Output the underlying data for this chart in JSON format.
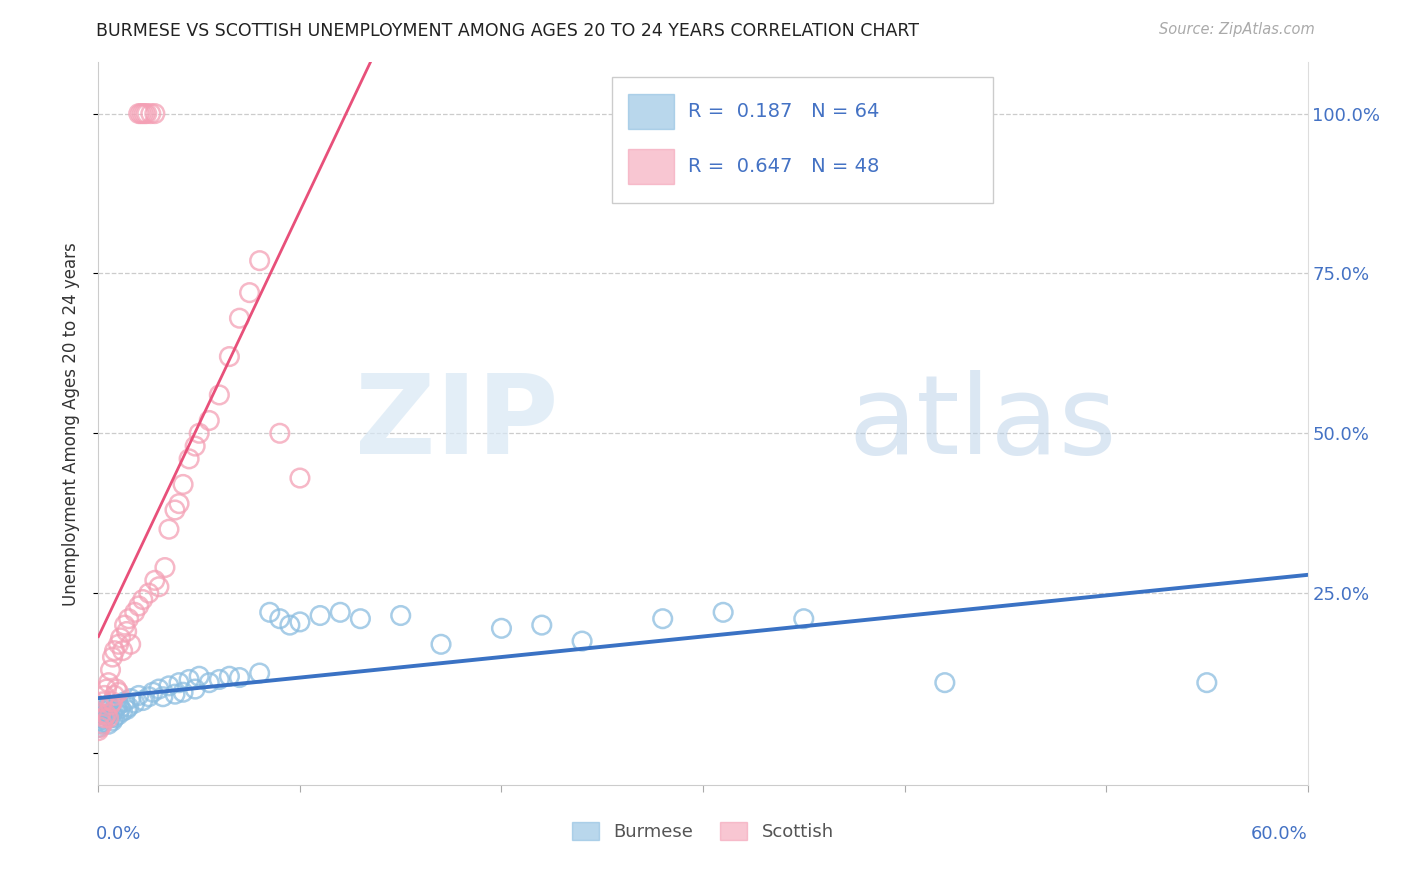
{
  "title": "BURMESE VS SCOTTISH UNEMPLOYMENT AMONG AGES 20 TO 24 YEARS CORRELATION CHART",
  "source": "Source: ZipAtlas.com",
  "ylabel": "Unemployment Among Ages 20 to 24 years",
  "xlim": [
    0.0,
    0.6
  ],
  "ylim": [
    -0.05,
    1.08
  ],
  "burmese_R": 0.187,
  "burmese_N": 64,
  "scottish_R": 0.647,
  "scottish_N": 48,
  "burmese_color": "#8bbde0",
  "scottish_color": "#f4a0b5",
  "burmese_line_color": "#3a72c4",
  "scottish_line_color": "#e8507a",
  "legend_burmese": "Burmese",
  "legend_scottish": "Scottish",
  "burmese_x": [
    0.0,
    0.0,
    0.001,
    0.001,
    0.002,
    0.002,
    0.003,
    0.003,
    0.004,
    0.004,
    0.005,
    0.005,
    0.005,
    0.006,
    0.006,
    0.007,
    0.007,
    0.008,
    0.008,
    0.009,
    0.01,
    0.01,
    0.011,
    0.012,
    0.013,
    0.014,
    0.015,
    0.016,
    0.018,
    0.02,
    0.022,
    0.025,
    0.027,
    0.03,
    0.032,
    0.035,
    0.038,
    0.04,
    0.042,
    0.045,
    0.048,
    0.05,
    0.055,
    0.06,
    0.065,
    0.07,
    0.08,
    0.085,
    0.09,
    0.095,
    0.1,
    0.11,
    0.12,
    0.13,
    0.15,
    0.17,
    0.2,
    0.22,
    0.24,
    0.28,
    0.31,
    0.35,
    0.42,
    0.55
  ],
  "burmese_y": [
    0.05,
    0.04,
    0.045,
    0.055,
    0.048,
    0.06,
    0.052,
    0.065,
    0.058,
    0.07,
    0.045,
    0.06,
    0.075,
    0.055,
    0.07,
    0.05,
    0.065,
    0.055,
    0.068,
    0.072,
    0.06,
    0.075,
    0.07,
    0.065,
    0.08,
    0.068,
    0.072,
    0.085,
    0.078,
    0.09,
    0.082,
    0.088,
    0.095,
    0.1,
    0.088,
    0.105,
    0.092,
    0.11,
    0.095,
    0.115,
    0.1,
    0.12,
    0.11,
    0.115,
    0.12,
    0.118,
    0.125,
    0.22,
    0.21,
    0.2,
    0.205,
    0.215,
    0.22,
    0.21,
    0.215,
    0.17,
    0.195,
    0.2,
    0.175,
    0.21,
    0.22,
    0.21,
    0.11,
    0.11
  ],
  "scottish_x": [
    0.0,
    0.001,
    0.001,
    0.002,
    0.002,
    0.003,
    0.003,
    0.004,
    0.004,
    0.005,
    0.005,
    0.006,
    0.006,
    0.007,
    0.007,
    0.008,
    0.008,
    0.009,
    0.01,
    0.01,
    0.011,
    0.012,
    0.013,
    0.014,
    0.015,
    0.016,
    0.018,
    0.02,
    0.022,
    0.025,
    0.028,
    0.03,
    0.033,
    0.035,
    0.038,
    0.04,
    0.042,
    0.045,
    0.048,
    0.05,
    0.055,
    0.06,
    0.065,
    0.07,
    0.075,
    0.08,
    0.09,
    0.1
  ],
  "scottish_y": [
    0.035,
    0.04,
    0.06,
    0.045,
    0.08,
    0.055,
    0.09,
    0.06,
    0.1,
    0.055,
    0.11,
    0.075,
    0.13,
    0.08,
    0.15,
    0.09,
    0.16,
    0.1,
    0.095,
    0.17,
    0.18,
    0.16,
    0.2,
    0.19,
    0.21,
    0.17,
    0.22,
    0.23,
    0.24,
    0.25,
    0.27,
    0.26,
    0.29,
    0.35,
    0.38,
    0.39,
    0.42,
    0.46,
    0.48,
    0.5,
    0.52,
    0.56,
    0.62,
    0.68,
    0.72,
    0.77,
    0.5,
    0.43
  ],
  "scottish_top_x": [
    0.02,
    0.021,
    0.022,
    0.023,
    0.024,
    0.026,
    0.028
  ],
  "scottish_top_y": [
    1.0,
    1.0,
    1.0,
    1.0,
    1.0,
    1.0,
    1.0
  ],
  "yticks": [
    0.0,
    0.25,
    0.5,
    0.75,
    1.0
  ],
  "ytick_labels_right": [
    "",
    "25.0%",
    "50.0%",
    "75.0%",
    "100.0%"
  ],
  "xtick_labels_bottom": [
    "0.0%",
    "60.0%"
  ]
}
